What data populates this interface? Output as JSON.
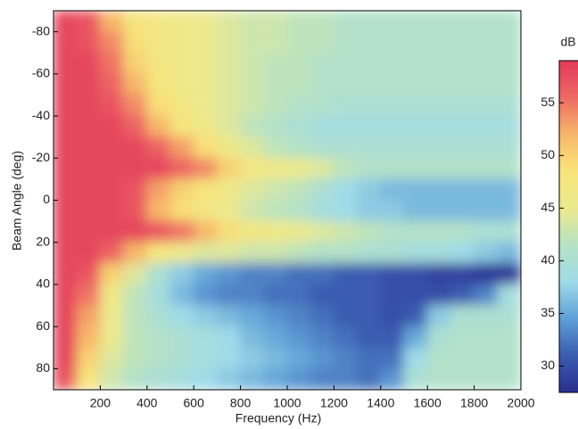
{
  "chart_data": {
    "type": "heatmap",
    "xlabel": "Frequency (Hz)",
    "ylabel": "Beam Angle (deg)",
    "colorbar_label": "dB",
    "x": [
      50,
      150,
      250,
      350,
      450,
      550,
      650,
      750,
      850,
      950,
      1050,
      1150,
      1250,
      1350,
      1450,
      1550,
      1650,
      1750,
      1850,
      1950
    ],
    "y": [
      -85,
      -75,
      -65,
      -55,
      -45,
      -35,
      -25,
      -15,
      -5,
      5,
      15,
      25,
      35,
      45,
      55,
      65,
      75,
      85
    ],
    "z": [
      [
        58,
        57,
        52,
        48,
        47,
        46,
        45,
        44,
        43,
        43,
        42,
        42,
        41,
        41,
        41,
        41,
        41,
        41,
        41,
        41
      ],
      [
        58,
        57,
        54,
        49,
        47,
        46,
        45,
        44,
        43,
        43,
        42,
        42,
        41,
        41,
        41,
        41,
        41,
        41,
        41,
        41
      ],
      [
        58,
        58,
        55,
        50,
        47,
        46,
        45,
        44,
        43,
        42,
        42,
        41,
        41,
        41,
        41,
        41,
        41,
        41,
        41,
        41
      ],
      [
        58,
        58,
        56,
        52,
        48,
        46,
        45,
        44,
        43,
        42,
        42,
        41,
        41,
        41,
        41,
        41,
        41,
        41,
        41,
        41
      ],
      [
        58,
        58,
        57,
        54,
        49,
        47,
        45,
        44,
        43,
        42,
        41,
        41,
        40,
        40,
        40,
        40,
        40,
        40,
        40,
        40
      ],
      [
        58,
        58,
        58,
        56,
        52,
        48,
        46,
        44,
        42,
        41,
        40,
        39,
        39,
        39,
        39,
        39,
        39,
        39,
        39,
        39
      ],
      [
        58,
        58,
        58,
        58,
        56,
        53,
        49,
        46,
        44,
        42,
        41,
        40,
        40,
        40,
        40,
        40,
        40,
        40,
        40,
        40
      ],
      [
        58,
        58,
        58,
        58,
        58,
        56,
        54,
        50,
        47,
        46,
        45,
        44,
        42,
        41,
        41,
        41,
        41,
        41,
        41,
        41
      ],
      [
        58,
        58,
        58,
        57,
        53,
        50,
        48,
        46,
        44,
        43,
        42,
        40,
        38,
        37,
        36,
        36,
        36,
        36,
        36,
        36
      ],
      [
        58,
        58,
        58,
        57,
        52,
        49,
        47,
        45,
        43,
        42,
        41,
        39,
        38,
        37,
        37,
        36,
        36,
        36,
        36,
        36
      ],
      [
        58,
        58,
        58,
        58,
        57,
        55,
        52,
        49,
        47,
        46,
        45,
        44,
        43,
        42,
        41,
        41,
        41,
        41,
        40,
        40
      ],
      [
        58,
        58,
        56,
        52,
        48,
        45,
        44,
        44,
        43,
        43,
        42,
        41,
        41,
        40,
        40,
        39,
        39,
        38,
        37,
        36
      ],
      [
        58,
        57,
        50,
        44,
        40,
        37,
        35,
        34,
        33,
        33,
        32,
        32,
        31,
        31,
        30,
        30,
        29,
        29,
        28,
        28
      ],
      [
        58,
        55,
        46,
        42,
        39,
        36,
        34,
        33,
        33,
        32,
        32,
        31,
        31,
        31,
        30,
        30,
        30,
        31,
        33,
        39
      ],
      [
        58,
        53,
        45,
        42,
        40,
        38,
        37,
        36,
        35,
        34,
        33,
        32,
        31,
        31,
        30,
        31,
        37,
        40,
        40,
        40
      ],
      [
        58,
        52,
        45,
        42,
        41,
        40,
        39,
        38,
        36,
        35,
        34,
        33,
        32,
        31,
        31,
        35,
        40,
        41,
        41,
        41
      ],
      [
        58,
        50,
        44,
        42,
        41,
        40,
        39,
        38,
        37,
        36,
        35,
        34,
        33,
        32,
        32,
        38,
        41,
        41,
        41,
        41
      ],
      [
        57,
        48,
        43,
        41,
        40,
        39,
        38,
        37,
        36,
        35,
        34,
        33,
        33,
        32,
        34,
        40,
        41,
        41,
        41,
        41
      ]
    ],
    "xlim": [
      0,
      2000
    ],
    "xticks": [
      200,
      400,
      600,
      800,
      1000,
      1200,
      1400,
      1600,
      1800,
      2000
    ],
    "ylim": [
      -90,
      90
    ],
    "yticks": [
      -80,
      -60,
      -40,
      -20,
      0,
      20,
      40,
      60,
      80
    ],
    "y_reversed": true,
    "clim": [
      27.5,
      59
    ],
    "cticks": [
      30,
      35,
      40,
      45,
      50,
      55
    ],
    "colormap": [
      "#2a2f8f",
      "#3b5cb0",
      "#5f9fd6",
      "#9fdbe8",
      "#b6e2c4",
      "#ece98e",
      "#f8e47a",
      "#f7b76a",
      "#ee6a64",
      "#e2395a"
    ]
  }
}
